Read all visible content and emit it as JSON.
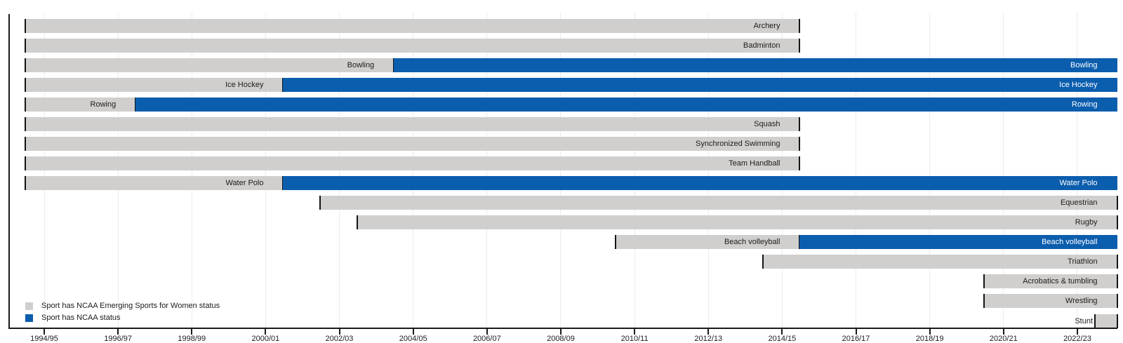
{
  "chart_data": {
    "type": "gantt-timeline",
    "title": "",
    "description_from_pixels_only": "Timeline of NCAA Emerging Sports for Women status per sport",
    "axis_range": {
      "min_year": 1994,
      "max_year": 2023.6
    },
    "x_axis": {
      "tick_labels": [
        "1994/95",
        "1996/97",
        "1998/99",
        "2000/01",
        "2002/03",
        "2004/05",
        "2006/07",
        "2008/09",
        "2010/11",
        "2012/13",
        "2014/15",
        "2016/17",
        "2018/19",
        "2020/21",
        "2022/23"
      ],
      "first_tick_year": 1994,
      "tick_interval_years": 2,
      "grid": true
    },
    "legend": [
      {
        "key": "emerging",
        "color": "#d1cfcd",
        "label": "Sport has NCAA Emerging Sports for Women status"
      },
      {
        "key": "ncaa",
        "color": "#0b5dad",
        "label": "Sport has NCAA status"
      }
    ],
    "colors": {
      "emerging": "#d1cfcd",
      "ncaa": "#0b5dad",
      "boundary_tick": "#141414",
      "gridline": "#ececec",
      "axis": "#1a1a1a",
      "label_on_gray": "#1c1c1c",
      "label_on_blue": "#ffffff"
    },
    "rows": [
      {
        "label": "Archery",
        "segments": [
          {
            "status": "emerging",
            "start": 1994,
            "end": 2015
          }
        ]
      },
      {
        "label": "Badminton",
        "segments": [
          {
            "status": "emerging",
            "start": 1994,
            "end": 2015
          }
        ]
      },
      {
        "label": "Bowling",
        "segments": [
          {
            "status": "emerging",
            "start": 1994,
            "end": 2004
          },
          {
            "status": "ncaa",
            "start": 2004,
            "end": null
          }
        ]
      },
      {
        "label": "Ice Hockey",
        "segments": [
          {
            "status": "emerging",
            "start": 1994,
            "end": 2001
          },
          {
            "status": "ncaa",
            "start": 2001,
            "end": null
          }
        ]
      },
      {
        "label": "Rowing",
        "segments": [
          {
            "status": "emerging",
            "start": 1994,
            "end": 1997
          },
          {
            "status": "ncaa",
            "start": 1997,
            "end": null
          }
        ]
      },
      {
        "label": "Squash",
        "segments": [
          {
            "status": "emerging",
            "start": 1994,
            "end": 2015
          }
        ]
      },
      {
        "label": "Synchronized Swimming",
        "segments": [
          {
            "status": "emerging",
            "start": 1994,
            "end": 2015
          }
        ]
      },
      {
        "label": "Team Handball",
        "segments": [
          {
            "status": "emerging",
            "start": 1994,
            "end": 2015
          }
        ]
      },
      {
        "label": "Water Polo",
        "segments": [
          {
            "status": "emerging",
            "start": 1994,
            "end": 2001
          },
          {
            "status": "ncaa",
            "start": 2001,
            "end": null
          }
        ]
      },
      {
        "label": "Equestrian",
        "segments": [
          {
            "status": "emerging",
            "start": 2002,
            "end": null
          }
        ]
      },
      {
        "label": "Rugby",
        "segments": [
          {
            "status": "emerging",
            "start": 2003,
            "end": null
          }
        ]
      },
      {
        "label": "Beach volleyball",
        "segments": [
          {
            "status": "emerging",
            "start": 2010,
            "end": 2015
          },
          {
            "status": "ncaa",
            "start": 2015,
            "end": null
          }
        ]
      },
      {
        "label": "Triathlon",
        "segments": [
          {
            "status": "emerging",
            "start": 2014,
            "end": null
          }
        ]
      },
      {
        "label": "Acrobatics & tumbling",
        "segments": [
          {
            "status": "emerging",
            "start": 2020,
            "end": null
          }
        ]
      },
      {
        "label": "Wrestling",
        "segments": [
          {
            "status": "emerging",
            "start": 2020,
            "end": null
          }
        ]
      },
      {
        "label": "Stunt",
        "segments": [
          {
            "status": "emerging",
            "start": 2023,
            "end": null
          }
        ],
        "label_outside": true
      }
    ]
  }
}
